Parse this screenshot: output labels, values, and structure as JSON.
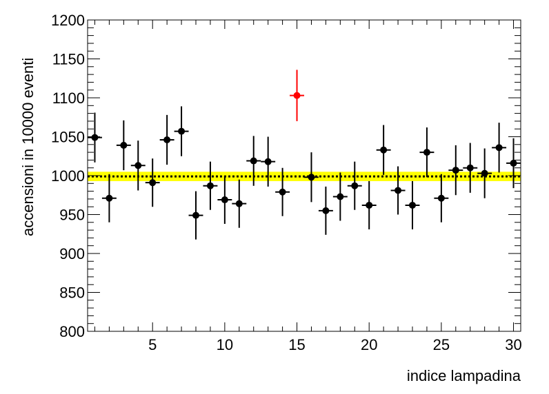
{
  "chart_data": {
    "type": "scatter",
    "xlabel": "indice lampadina",
    "ylabel": "accensioni in 10000 eventi",
    "xlim": [
      0.5,
      30.5
    ],
    "ylim": [
      800,
      1200
    ],
    "x_ticks": [
      5,
      10,
      15,
      20,
      25,
      30
    ],
    "y_ticks": [
      800,
      850,
      900,
      950,
      1000,
      1050,
      1100,
      1150,
      1200
    ],
    "grid": false,
    "colors": {
      "points": "#000000",
      "highlight": "#ff0000",
      "band": "#ffff00",
      "line": "#000000"
    },
    "band": {
      "lower": 993,
      "upper": 1005
    },
    "reference_line": 999,
    "x_error": 0.5,
    "series": [
      {
        "x": [
          1,
          2,
          3,
          4,
          5,
          6,
          7,
          8,
          9,
          10,
          11,
          12,
          13,
          14,
          15,
          16,
          17,
          18,
          19,
          20,
          21,
          22,
          23,
          24,
          25,
          26,
          27,
          28,
          29,
          30
        ],
        "y": [
          1049,
          971,
          1039,
          1013,
          991,
          1046,
          1057,
          949,
          987,
          969,
          964,
          1019,
          1018,
          979,
          1103,
          998,
          955,
          973,
          987,
          962,
          1033,
          981,
          962,
          1030,
          971,
          1007,
          1010,
          1003,
          1036,
          1016
        ],
        "err": [
          32,
          31,
          32,
          32,
          31,
          32,
          32,
          31,
          31,
          31,
          31,
          32,
          32,
          31,
          33,
          32,
          31,
          31,
          31,
          31,
          32,
          31,
          31,
          32,
          31,
          32,
          32,
          32,
          32,
          32
        ],
        "highlight": [
          false,
          false,
          false,
          false,
          false,
          false,
          false,
          false,
          false,
          false,
          false,
          false,
          false,
          false,
          true,
          false,
          false,
          false,
          false,
          false,
          false,
          false,
          false,
          false,
          false,
          false,
          false,
          false,
          false,
          false
        ]
      }
    ]
  }
}
